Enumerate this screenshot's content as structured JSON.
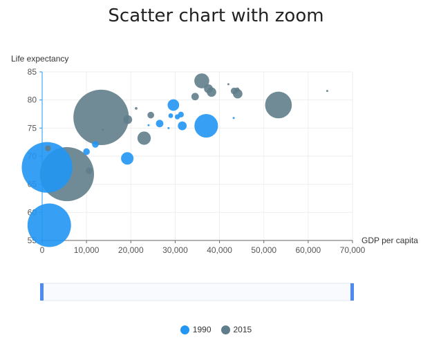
{
  "chart_data": {
    "type": "scatter",
    "title": "Scatter chart with zoom",
    "xlabel": "GDP per capita",
    "ylabel": "Life  expectancy",
    "xlim": [
      0,
      70000
    ],
    "ylim": [
      55,
      85
    ],
    "x_ticks": [
      "0",
      "10,000",
      "20,000",
      "30,000",
      "40,000",
      "50,000",
      "60,000",
      "70,000"
    ],
    "y_ticks": [
      "55",
      "60",
      "65",
      "70",
      "75",
      "80",
      "85"
    ],
    "grid": true,
    "legend_position": "bottom",
    "size_encoding": "population",
    "series": [
      {
        "name": "1990",
        "color": "#2196f3",
        "points": [
          {
            "x": 1100,
            "y": 68.0,
            "size": 1150
          },
          {
            "x": 1600,
            "y": 57.7,
            "size": 850
          },
          {
            "x": 10000,
            "y": 70.8,
            "size": 20
          },
          {
            "x": 12000,
            "y": 72.1,
            "size": 20
          },
          {
            "x": 19200,
            "y": 69.6,
            "size": 70
          },
          {
            "x": 24000,
            "y": 75.5,
            "size": 1
          },
          {
            "x": 26500,
            "y": 75.8,
            "size": 25
          },
          {
            "x": 28500,
            "y": 75.0,
            "size": 1
          },
          {
            "x": 29000,
            "y": 77.2,
            "size": 10
          },
          {
            "x": 29600,
            "y": 79.1,
            "size": 60
          },
          {
            "x": 30500,
            "y": 77.0,
            "size": 12
          },
          {
            "x": 31300,
            "y": 77.4,
            "size": 15
          },
          {
            "x": 31600,
            "y": 75.4,
            "size": 35
          },
          {
            "x": 37000,
            "y": 75.4,
            "size": 250
          },
          {
            "x": 43200,
            "y": 76.8,
            "size": 1
          }
        ]
      },
      {
        "name": "2015",
        "color": "#607d8b",
        "points": [
          {
            "x": 1300,
            "y": 71.4,
            "size": 15
          },
          {
            "x": 5600,
            "y": 66.8,
            "size": 1310
          },
          {
            "x": 10600,
            "y": 67.4,
            "size": 20
          },
          {
            "x": 13300,
            "y": 76.9,
            "size": 1380
          },
          {
            "x": 13700,
            "y": 74.7,
            "size": 2
          },
          {
            "x": 19300,
            "y": 76.5,
            "size": 35
          },
          {
            "x": 21200,
            "y": 78.5,
            "size": 3
          },
          {
            "x": 23000,
            "y": 73.2,
            "size": 80
          },
          {
            "x": 24500,
            "y": 77.3,
            "size": 20
          },
          {
            "x": 34500,
            "y": 80.6,
            "size": 25
          },
          {
            "x": 36000,
            "y": 83.4,
            "size": 100
          },
          {
            "x": 37500,
            "y": 82.0,
            "size": 35
          },
          {
            "x": 38200,
            "y": 81.4,
            "size": 40
          },
          {
            "x": 42000,
            "y": 82.8,
            "size": 0.5
          },
          {
            "x": 43300,
            "y": 81.6,
            "size": 20
          },
          {
            "x": 44000,
            "y": 81.8,
            "size": 10
          },
          {
            "x": 44100,
            "y": 81.1,
            "size": 40
          },
          {
            "x": 53300,
            "y": 79.1,
            "size": 320
          },
          {
            "x": 64300,
            "y": 81.6,
            "size": 1
          }
        ]
      }
    ]
  }
}
